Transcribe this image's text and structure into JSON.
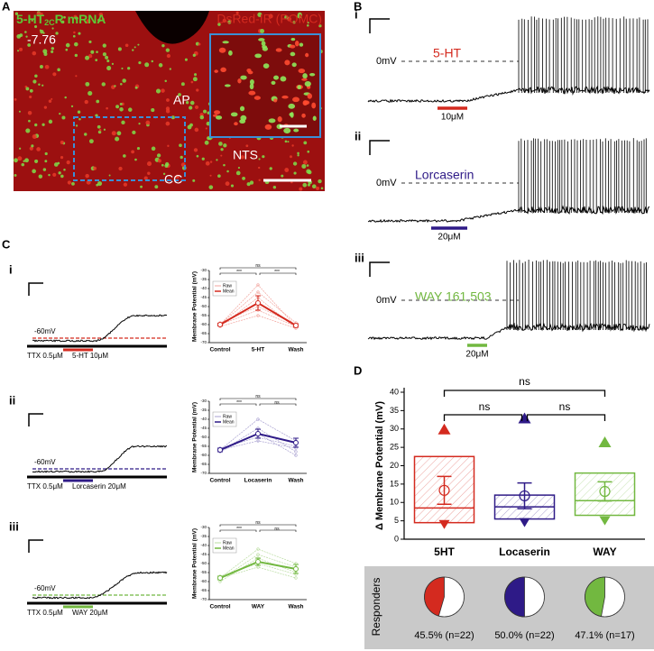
{
  "panels": {
    "A": {
      "label": "A",
      "title_green": [
        "5-HT",
        "2C",
        "R mRNA"
      ],
      "title_red": "DsRed-IR (POMC)",
      "coord": "-7.76",
      "regions": [
        "AP",
        "NTS",
        "CC"
      ]
    },
    "B": {
      "label": "B",
      "traces": [
        {
          "roman": "i",
          "drug": "5-HT",
          "color": "#d42a1f",
          "conc": "10μM",
          "ref": "0mV"
        },
        {
          "roman": "ii",
          "drug": "Lorcaserin",
          "color": "#2e1a87",
          "conc": "20μM",
          "ref": "0mV"
        },
        {
          "roman": "iii",
          "drug": "WAY 161,503",
          "color": "#72b840",
          "conc": "20μM",
          "ref": "0mV"
        }
      ]
    },
    "C": {
      "label": "C",
      "traces": [
        {
          "roman": "i",
          "ref": "-60mV",
          "ttx": "TTX 0.5μM",
          "drug": "5-HT 10μM",
          "color": "#d42a1f"
        },
        {
          "roman": "ii",
          "ref": "-60mV",
          "ttx": "TTX 0.5μM",
          "drug": "Lorcaserin 20μM",
          "color": "#2e1a87"
        },
        {
          "roman": "iii",
          "ref": "-60mV",
          "ttx": "TTX 0.5μM",
          "drug": "WAY 20μM",
          "color": "#72b840"
        }
      ]
    },
    "D": {
      "label": "D",
      "responders_label": "Responders"
    }
  },
  "chart_data": [
    {
      "type": "line",
      "ylabel": "Membrane Potential (mV)",
      "categories": [
        "Control",
        "5-HT",
        "Wash"
      ],
      "ylim": [
        -70,
        -30
      ],
      "yticks": [
        -70,
        -65,
        -60,
        -55,
        -50,
        -45,
        -40,
        -35,
        -30
      ],
      "sig_labels": [
        "***",
        "***",
        "ns"
      ],
      "raw": {
        "name": "Raw",
        "color": "#f2a39c",
        "series": [
          [
            -60,
            -38,
            -61
          ],
          [
            -60,
            -42,
            -59
          ],
          [
            -61,
            -45,
            -62
          ],
          [
            -59,
            -50,
            -60
          ],
          [
            -60,
            -52,
            -61
          ],
          [
            -61,
            -55,
            -62
          ]
        ]
      },
      "mean": {
        "name": "Mean",
        "color": "#d42a1f",
        "values": [
          -60,
          -48,
          -60.5
        ],
        "errors": [
          0.8,
          4,
          1
        ]
      }
    },
    {
      "type": "line",
      "ylabel": "Membrane Potential (mV)",
      "categories": [
        "Control",
        "Locaserin",
        "Wash"
      ],
      "ylim": [
        -70,
        -30
      ],
      "yticks": [
        -70,
        -65,
        -60,
        -55,
        -50,
        -45,
        -40,
        -35,
        -30
      ],
      "sig_labels": [
        "***",
        "ns",
        "ns"
      ],
      "raw": {
        "name": "Raw",
        "color": "#a79fd0",
        "series": [
          [
            -57,
            -40,
            -52
          ],
          [
            -58,
            -45,
            -58
          ],
          [
            -56,
            -50,
            -55
          ],
          [
            -57,
            -52,
            -56
          ],
          [
            -58,
            -48,
            -60
          ]
        ]
      },
      "mean": {
        "name": "Mean",
        "color": "#2e1a87",
        "values": [
          -57,
          -48,
          -53
        ],
        "errors": [
          1,
          2.5,
          2.5
        ]
      }
    },
    {
      "type": "line",
      "ylabel": "Membrane Potential (mV)",
      "categories": [
        "Control",
        "WAY",
        "Wash"
      ],
      "ylim": [
        -70,
        -30
      ],
      "yticks": [
        -70,
        -65,
        -60,
        -55,
        -50,
        -45,
        -40,
        -35,
        -30
      ],
      "sig_labels": [
        "***",
        "ns",
        "ns"
      ],
      "raw": {
        "name": "Raw",
        "color": "#b9dca0",
        "series": [
          [
            -58,
            -42,
            -50
          ],
          [
            -59,
            -45,
            -52
          ],
          [
            -57,
            -50,
            -56
          ],
          [
            -58,
            -52,
            -58
          ],
          [
            -60,
            -47,
            -55
          ]
        ]
      },
      "mean": {
        "name": "Mean",
        "color": "#72b840",
        "values": [
          -58,
          -49,
          -53
        ],
        "errors": [
          1,
          2,
          2.5
        ]
      }
    },
    {
      "type": "box",
      "ylabel": "Δ Membrane Potential (mV)",
      "categories": [
        "5HT",
        "Locaserin",
        "WAY"
      ],
      "colors": [
        "#d42a1f",
        "#2e1a87",
        "#72b840"
      ],
      "ylim": [
        0,
        40
      ],
      "yticks": [
        0,
        5,
        10,
        15,
        20,
        25,
        30,
        35,
        40
      ],
      "q1": [
        4.5,
        5.5,
        6.5
      ],
      "median": [
        8.5,
        8.8,
        10.5
      ],
      "q3": [
        22.5,
        12,
        18
      ],
      "mean": [
        13.3,
        11.8,
        13
      ],
      "errors": [
        3.8,
        3.5,
        2.6
      ],
      "max": [
        30,
        33,
        26.5
      ],
      "min": [
        4,
        4.5,
        5
      ],
      "sig_labels": [
        "ns",
        "ns",
        "ns"
      ],
      "responders": {
        "values": [
          45.5,
          50.0,
          47.1
        ],
        "value_labels": [
          "45.5% (n=22)",
          "50.0% (n=22)",
          "47.1% (n=17)"
        ]
      }
    }
  ]
}
